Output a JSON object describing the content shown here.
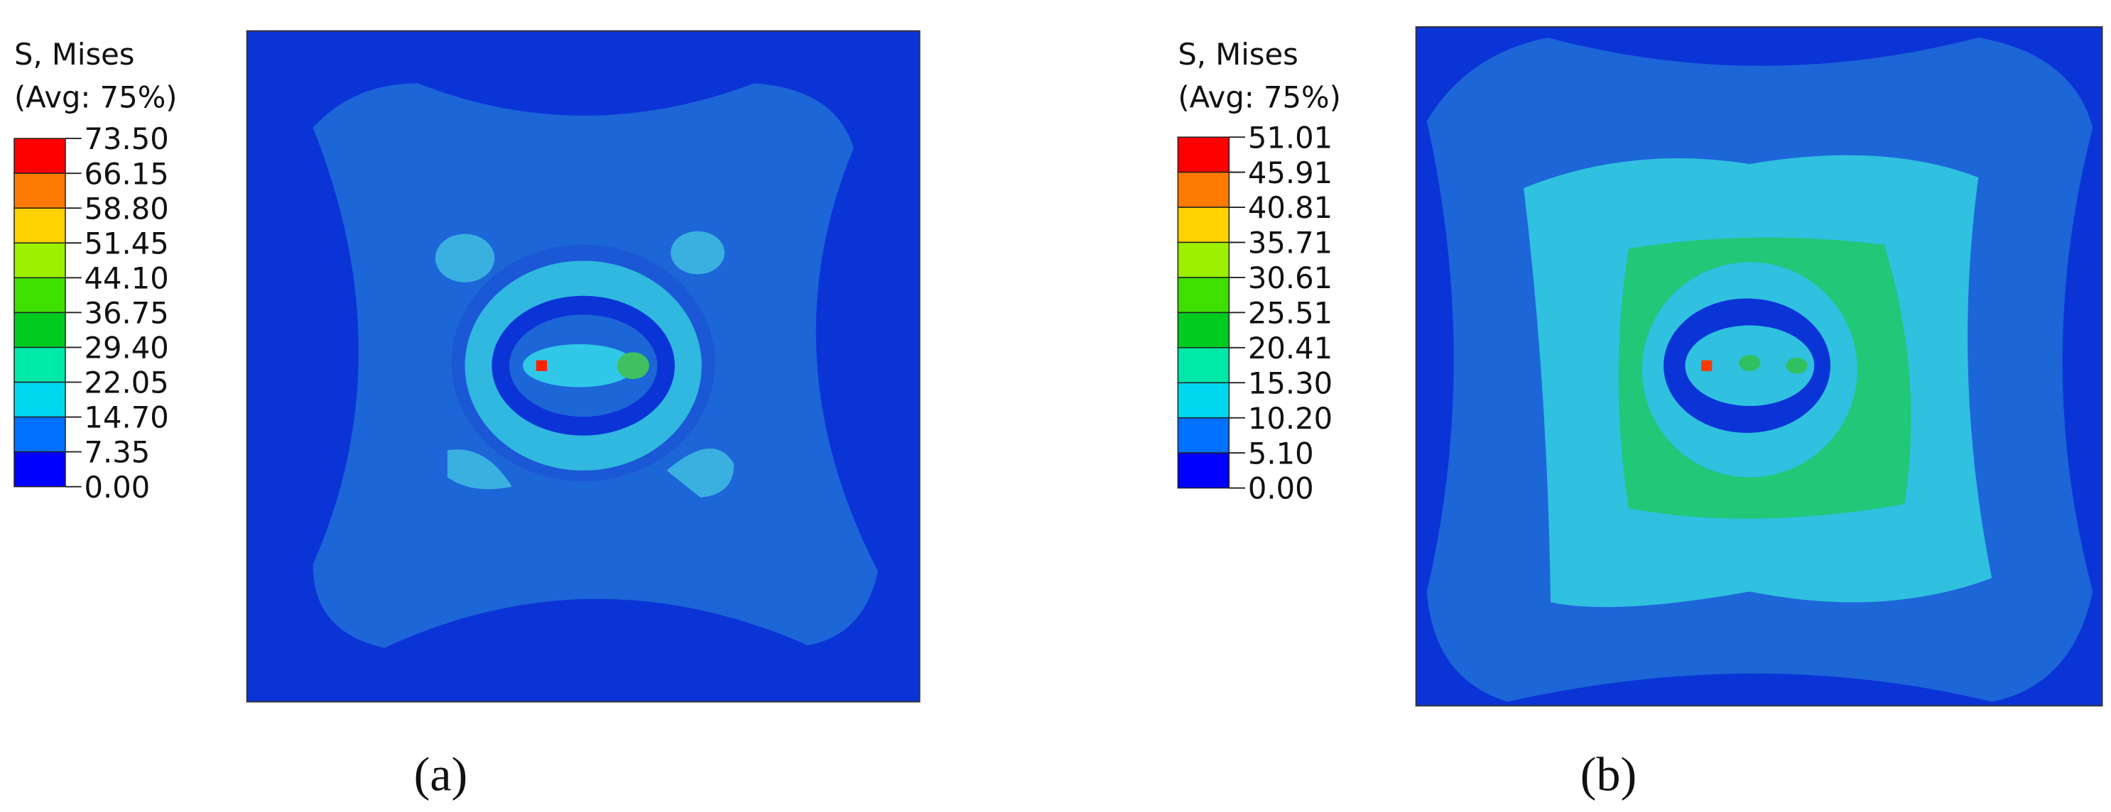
{
  "panels": [
    {
      "legend": {
        "title": "S, Mises",
        "subtitle": "(Avg: 75%)",
        "labels": [
          "73.50",
          "66.15",
          "58.80",
          "51.45",
          "44.10",
          "36.75",
          "29.40",
          "22.05",
          "14.70",
          "7.35",
          "0.00"
        ]
      },
      "caption": "(a)"
    },
    {
      "legend": {
        "title": "S, Mises",
        "subtitle": "(Avg: 75%)",
        "labels": [
          "51.01",
          "45.91",
          "40.81",
          "35.71",
          "30.61",
          "25.51",
          "20.41",
          "15.30",
          "10.20",
          "5.10",
          "0.00"
        ]
      },
      "caption": "(b)"
    }
  ]
}
